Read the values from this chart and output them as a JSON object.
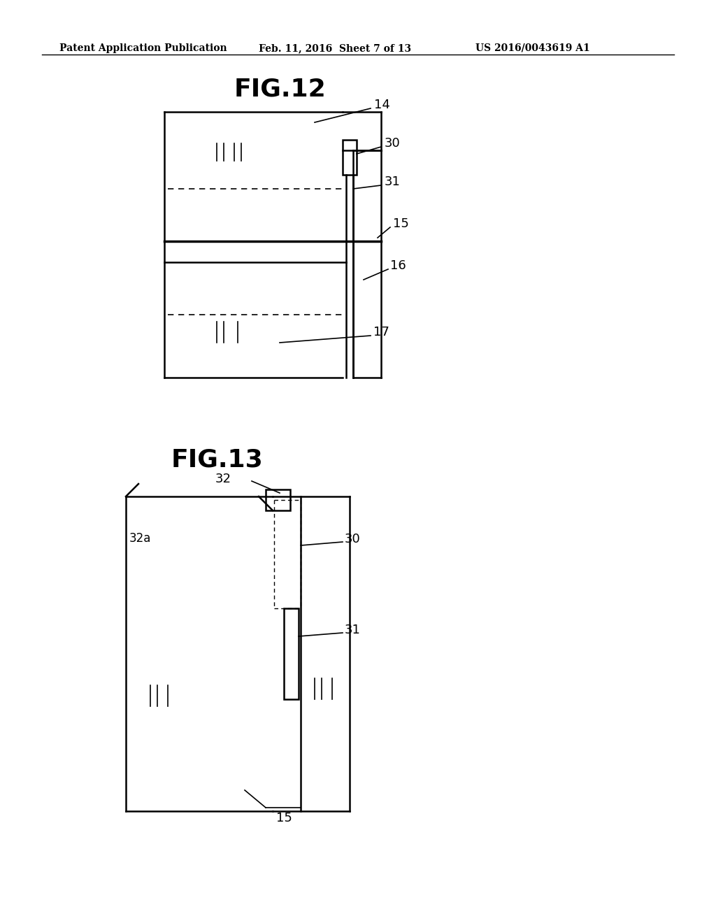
{
  "bg_color": "#ffffff",
  "header_text": "Patent Application Publication",
  "header_date": "Feb. 11, 2016  Sheet 7 of 13",
  "header_patent": "US 2016/0043619 A1",
  "fig12_title": "FIG.12",
  "fig13_title": "FIG.13",
  "line_color": "#000000",
  "dashed_color": "#000000"
}
